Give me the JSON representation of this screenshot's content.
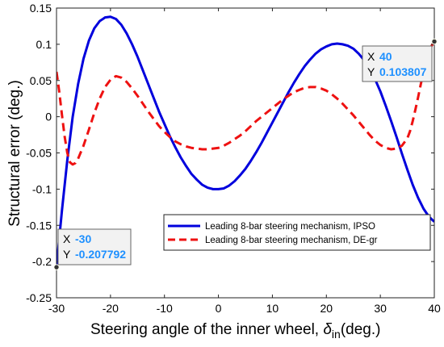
{
  "chart_data": {
    "type": "line",
    "xlabel": "Steering angle of the inner wheel, ",
    "xlabel_symbol": "δ",
    "xlabel_subscript": "in",
    "xlabel_unit": "(deg.)",
    "ylabel": "Structural error (deg.)",
    "xlim": [
      -30,
      40
    ],
    "ylim": [
      -0.25,
      0.15
    ],
    "xticks": [
      -30,
      -20,
      -10,
      0,
      10,
      20,
      30,
      40
    ],
    "yticks": [
      -0.25,
      -0.2,
      -0.15,
      -0.1,
      -0.05,
      0,
      0.05,
      0.1,
      0.15
    ],
    "xtick_labels": [
      "-30",
      "-20",
      "-10",
      "0",
      "10",
      "20",
      "30",
      "40"
    ],
    "ytick_labels": [
      "-0.25",
      "-0.2",
      "-0.15",
      "-0.1",
      "-0.05",
      "0",
      "0.05",
      "0.1",
      "0.15"
    ],
    "grid": false,
    "legend_position": "lower-right",
    "series": [
      {
        "name": "Leading 8-bar steering mechanism, IPSO",
        "color": "#0000dd",
        "style": "solid",
        "x": [
          -30,
          -29,
          -28,
          -27,
          -26,
          -25,
          -24,
          -23,
          -22,
          -21,
          -20,
          -19,
          -18,
          -17,
          -16,
          -15,
          -14,
          -13,
          -12,
          -11,
          -10,
          -9,
          -8,
          -7,
          -6,
          -5,
          -4,
          -3,
          -2,
          -1,
          0,
          1,
          2,
          3,
          4,
          5,
          6,
          7,
          8,
          9,
          10,
          11,
          12,
          13,
          14,
          15,
          16,
          17,
          18,
          19,
          20,
          21,
          22,
          23,
          24,
          25,
          26,
          27,
          28,
          29,
          30,
          31,
          32,
          33,
          34,
          35,
          36,
          37,
          38,
          39,
          40
        ],
        "y": [
          -0.2078,
          -0.13,
          -0.06,
          0.0,
          0.045,
          0.08,
          0.105,
          0.122,
          0.132,
          0.137,
          0.138,
          0.135,
          0.127,
          0.115,
          0.1,
          0.083,
          0.064,
          0.045,
          0.026,
          0.007,
          -0.01,
          -0.027,
          -0.042,
          -0.056,
          -0.068,
          -0.079,
          -0.087,
          -0.094,
          -0.098,
          -0.1,
          -0.1,
          -0.099,
          -0.095,
          -0.089,
          -0.081,
          -0.072,
          -0.061,
          -0.049,
          -0.036,
          -0.022,
          -0.008,
          0.006,
          0.02,
          0.034,
          0.047,
          0.059,
          0.07,
          0.079,
          0.087,
          0.093,
          0.097,
          0.1,
          0.101,
          0.1,
          0.098,
          0.094,
          0.087,
          0.078,
          0.066,
          0.052,
          0.035,
          0.015,
          -0.006,
          -0.028,
          -0.051,
          -0.073,
          -0.094,
          -0.112,
          -0.127,
          -0.138,
          -0.145
        ]
      },
      {
        "name": "Leading 8-bar steering mechanism, DE-gr",
        "color": "#ee1111",
        "style": "dashed",
        "x": [
          -30,
          -29.5,
          -29,
          -28.5,
          -28,
          -27.5,
          -27,
          -26.5,
          -26,
          -25,
          -24,
          -23,
          -22,
          -21,
          -20,
          -19,
          -18,
          -17,
          -16,
          -15,
          -14,
          -13,
          -12,
          -11,
          -10,
          -9,
          -8,
          -7,
          -6,
          -5,
          -4,
          -3,
          -2,
          -1,
          0,
          1,
          2,
          3,
          4,
          5,
          6,
          7,
          8,
          9,
          10,
          11,
          12,
          13,
          14,
          15,
          16,
          17,
          18,
          19,
          20,
          21,
          22,
          23,
          24,
          25,
          26,
          27,
          28,
          29,
          30,
          31,
          32,
          33,
          34,
          35,
          35.5,
          36,
          36.5,
          37,
          37.5,
          38,
          38.5,
          39,
          39.5,
          40
        ],
        "y": [
          0.062,
          0.035,
          0.003,
          -0.027,
          -0.05,
          -0.063,
          -0.066,
          -0.064,
          -0.058,
          -0.04,
          -0.018,
          0.005,
          0.025,
          0.041,
          0.051,
          0.056,
          0.054,
          0.048,
          0.039,
          0.029,
          0.018,
          0.007,
          -0.003,
          -0.013,
          -0.021,
          -0.028,
          -0.034,
          -0.038,
          -0.041,
          -0.043,
          -0.044,
          -0.045,
          -0.045,
          -0.044,
          -0.043,
          -0.04,
          -0.036,
          -0.031,
          -0.026,
          -0.02,
          -0.013,
          -0.006,
          0.0,
          0.006,
          0.012,
          0.018,
          0.024,
          0.029,
          0.034,
          0.037,
          0.04,
          0.041,
          0.041,
          0.039,
          0.036,
          0.031,
          0.025,
          0.018,
          0.01,
          0.002,
          -0.007,
          -0.016,
          -0.025,
          -0.033,
          -0.039,
          -0.043,
          -0.045,
          -0.044,
          -0.04,
          -0.03,
          -0.02,
          -0.006,
          0.01,
          0.027,
          0.045,
          0.062,
          0.077,
          0.089,
          0.098,
          0.1038
        ]
      }
    ],
    "annotations": [
      {
        "x_key": "X",
        "y_key": "Y",
        "x_value": "40",
        "y_value": "0.103807",
        "x": 40,
        "y": 0.103807
      },
      {
        "x_key": "X",
        "y_key": "Y",
        "x_value": "-30",
        "y_value": "-0.207792",
        "x": -30,
        "y": -0.207792
      }
    ],
    "tooltip_value_color": "#1e90ff"
  }
}
